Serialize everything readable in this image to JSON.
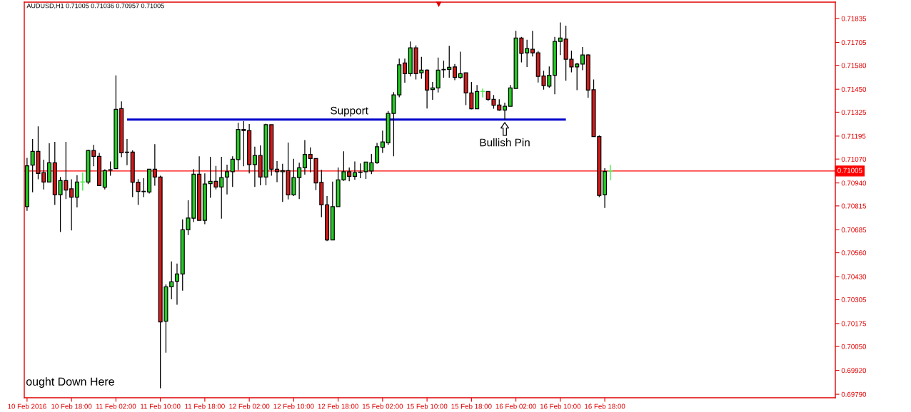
{
  "chart_data": {
    "type": "candlestick",
    "title": "AUDUSD,H1 0.71005 0.71036 0.70957 0.71005",
    "categories": [
      "10 Feb 2016",
      null,
      null,
      null,
      null,
      null,
      null,
      null,
      "10 Feb 18:00",
      null,
      null,
      null,
      null,
      null,
      null,
      null,
      "11 Feb 02:00",
      null,
      null,
      null,
      null,
      null,
      null,
      null,
      "11 Feb 10:00",
      null,
      null,
      null,
      null,
      null,
      null,
      null,
      "11 Feb 18:00",
      null,
      null,
      null,
      null,
      null,
      null,
      null,
      "12 Feb 02:00",
      null,
      null,
      null,
      null,
      null,
      null,
      null,
      "12 Feb 10:00",
      null,
      null,
      null,
      null,
      null,
      null,
      null,
      "12 Feb 18:00",
      null,
      null,
      null,
      null,
      null,
      null,
      null,
      "15 Feb 02:00",
      null,
      null,
      null,
      null,
      null,
      null,
      null,
      "15 Feb 10:00",
      null,
      null,
      null,
      null,
      null,
      null,
      null,
      "15 Feb 18:00",
      null,
      null,
      null,
      null,
      null,
      null,
      null,
      "16 Feb 02:00",
      null,
      null,
      null,
      null,
      null,
      null,
      null,
      "16 Feb 10:00",
      null,
      null,
      null,
      null,
      null,
      null,
      null,
      "16 Feb 18:00",
      null,
      null,
      null,
      null,
      null,
      null,
      null,
      null,
      null,
      null,
      null,
      null,
      null,
      null,
      null,
      null,
      null,
      null,
      null,
      null,
      null,
      null,
      null,
      null,
      null,
      null,
      null,
      null,
      null,
      null,
      null,
      null,
      null,
      null,
      null,
      null,
      null,
      null,
      null,
      null,
      null
    ],
    "ohlc": [
      [
        0.70811,
        0.71076,
        0.70788,
        0.71033
      ],
      [
        0.71037,
        0.71179,
        0.70889,
        0.71112
      ],
      [
        0.71112,
        0.71248,
        0.7096,
        0.70992
      ],
      [
        0.70996,
        0.71067,
        0.70905,
        0.70945
      ],
      [
        0.70945,
        0.71156,
        0.70945,
        0.7105
      ],
      [
        0.7105,
        0.71164,
        0.7082,
        0.70876
      ],
      [
        0.70876,
        0.70973,
        0.70673,
        0.70953
      ],
      [
        0.70953,
        0.71164,
        0.70852,
        0.70901
      ],
      [
        0.70908,
        0.7096,
        0.70682,
        0.70863
      ],
      [
        0.70863,
        0.70982,
        0.70807,
        0.70945
      ],
      [
        0.70945,
        0.70994,
        0.70901,
        0.70945
      ],
      [
        0.70945,
        0.71121,
        0.70934,
        0.71117
      ],
      [
        0.71117,
        0.71147,
        0.71031,
        0.71085
      ],
      [
        0.71085,
        0.71104,
        0.70926,
        0.70926
      ],
      [
        0.70917,
        0.71014,
        0.70905,
        0.71007
      ],
      [
        0.71012,
        0.71057,
        0.70979,
        0.7101
      ],
      [
        0.71018,
        0.71525,
        0.71015,
        0.71341
      ],
      [
        0.71345,
        0.71384,
        0.7108,
        0.71104
      ],
      [
        0.71108,
        0.71179,
        0.71037,
        0.71106
      ],
      [
        0.71108,
        0.71117,
        0.70863,
        0.70944
      ],
      [
        0.70944,
        0.7096,
        0.7082,
        0.70894
      ],
      [
        0.70895,
        0.70966,
        0.70863,
        0.70893
      ],
      [
        0.70891,
        0.71015,
        0.70882,
        0.71015
      ],
      [
        0.71015,
        0.71151,
        0.70925,
        0.70972
      ],
      [
        0.70972,
        0.70979,
        0.69822,
        0.70184
      ],
      [
        0.70188,
        0.70388,
        0.70016,
        0.70375
      ],
      [
        0.70375,
        0.70513,
        0.70307,
        0.70402
      ],
      [
        0.70405,
        0.70501,
        0.70277,
        0.70445
      ],
      [
        0.70445,
        0.70742,
        0.70354,
        0.70685
      ],
      [
        0.70685,
        0.70846,
        0.70656,
        0.70749
      ],
      [
        0.70748,
        0.71015,
        0.70727,
        0.70988
      ],
      [
        0.70988,
        0.71085,
        0.70736,
        0.70736
      ],
      [
        0.70736,
        0.70992,
        0.70716,
        0.70934
      ],
      [
        0.70936,
        0.71082,
        0.70859,
        0.70949
      ],
      [
        0.70949,
        0.71033,
        0.70905,
        0.70918
      ],
      [
        0.70918,
        0.71082,
        0.70746,
        0.70969
      ],
      [
        0.70972,
        0.7104,
        0.70878,
        0.71001
      ],
      [
        0.71001,
        0.71085,
        0.70918,
        0.71069
      ],
      [
        0.71067,
        0.71267,
        0.71009,
        0.71231
      ],
      [
        0.71231,
        0.71276,
        0.71031,
        0.71225
      ],
      [
        0.71225,
        0.71261,
        0.70992,
        0.7104
      ],
      [
        0.7104,
        0.71137,
        0.70918,
        0.71089
      ],
      [
        0.71089,
        0.71144,
        0.70927,
        0.70972
      ],
      [
        0.70972,
        0.71263,
        0.70927,
        0.71257
      ],
      [
        0.71257,
        0.71257,
        0.70979,
        0.71015
      ],
      [
        0.71015,
        0.71059,
        0.70944,
        0.71001
      ],
      [
        0.71001,
        0.71044,
        0.70837,
        0.71007
      ],
      [
        0.71007,
        0.7116,
        0.7085,
        0.70875
      ],
      [
        0.70875,
        0.71072,
        0.70869,
        0.70969
      ],
      [
        0.70969,
        0.7105,
        0.70852,
        0.71023
      ],
      [
        0.71023,
        0.71173,
        0.70985,
        0.71095
      ],
      [
        0.71095,
        0.71134,
        0.70998,
        0.71073
      ],
      [
        0.71073,
        0.71073,
        0.70901,
        0.7094
      ],
      [
        0.70943,
        0.71011,
        0.70753,
        0.70821
      ],
      [
        0.70821,
        0.70869,
        0.70623,
        0.7063
      ],
      [
        0.7063,
        0.70947,
        0.70627,
        0.70811
      ],
      [
        0.70811,
        0.71024,
        0.70811,
        0.70957
      ],
      [
        0.70957,
        0.71112,
        0.70951,
        0.71001
      ],
      [
        0.71001,
        0.71024,
        0.70949,
        0.70976
      ],
      [
        0.70976,
        0.71057,
        0.70957,
        0.70996
      ],
      [
        0.70999,
        0.71046,
        0.70966,
        0.70997
      ],
      [
        0.71001,
        0.71054,
        0.70962,
        0.71054
      ],
      [
        0.71005,
        0.71098,
        0.70988,
        0.7105
      ],
      [
        0.7105,
        0.71158,
        0.71044,
        0.71137
      ],
      [
        0.71134,
        0.71225,
        0.71104,
        0.71163
      ],
      [
        0.71158,
        0.71331,
        0.71147,
        0.71318
      ],
      [
        0.71318,
        0.71434,
        0.71085,
        0.71419
      ],
      [
        0.71419,
        0.71617,
        0.71406,
        0.71583
      ],
      [
        0.71593,
        0.71617,
        0.71486,
        0.71535
      ],
      [
        0.71535,
        0.7171,
        0.7152,
        0.71675
      ],
      [
        0.71675,
        0.71688,
        0.71503,
        0.71535
      ],
      [
        0.71539,
        0.71626,
        0.71507,
        0.71554
      ],
      [
        0.71554,
        0.71558,
        0.71345,
        0.71445
      ],
      [
        0.71448,
        0.7149,
        0.71393,
        0.71457
      ],
      [
        0.71457,
        0.71622,
        0.71432,
        0.71554
      ],
      [
        0.71558,
        0.71606,
        0.71513,
        0.71556
      ],
      [
        0.71558,
        0.71686,
        0.71513,
        0.7157
      ],
      [
        0.71571,
        0.71587,
        0.71499,
        0.71514
      ],
      [
        0.71514,
        0.71654,
        0.71507,
        0.71535
      ],
      [
        0.71539,
        0.71539,
        0.71363,
        0.7143
      ],
      [
        0.7143,
        0.7149,
        0.7134,
        0.71344
      ],
      [
        0.71344,
        0.71473,
        0.71344,
        0.71438
      ],
      [
        0.71438,
        0.71451,
        0.71408,
        0.71438
      ],
      [
        0.71438,
        0.71438,
        0.71386,
        0.71395
      ],
      [
        0.71395,
        0.71419,
        0.71344,
        0.71363
      ],
      [
        0.71364,
        0.71395,
        0.71332,
        0.71337
      ],
      [
        0.71337,
        0.71377,
        0.71285,
        0.71357
      ],
      [
        0.71357,
        0.71473,
        0.71357,
        0.71457
      ],
      [
        0.71454,
        0.71768,
        0.71454,
        0.71729
      ],
      [
        0.71729,
        0.71735,
        0.71596,
        0.71645
      ],
      [
        0.71648,
        0.71719,
        0.71571,
        0.71671
      ],
      [
        0.71667,
        0.71768,
        0.71628,
        0.71648
      ],
      [
        0.71648,
        0.71658,
        0.71487,
        0.7152
      ],
      [
        0.71522,
        0.71551,
        0.71448,
        0.7147
      ],
      [
        0.71467,
        0.71574,
        0.71458,
        0.71526
      ],
      [
        0.71526,
        0.71735,
        0.71423,
        0.7171
      ],
      [
        0.7171,
        0.71813,
        0.71636,
        0.71729
      ],
      [
        0.71723,
        0.71796,
        0.71496,
        0.71613
      ],
      [
        0.71613,
        0.7166,
        0.71542,
        0.71571
      ],
      [
        0.71571,
        0.71593,
        0.71445,
        0.71587
      ],
      [
        0.71587,
        0.7168,
        0.71554,
        0.71636
      ],
      [
        0.71636,
        0.71641,
        0.71403,
        0.71445
      ],
      [
        0.71447,
        0.71503,
        0.71192,
        0.71192
      ],
      [
        0.71192,
        0.71199,
        0.70863,
        0.70872
      ],
      [
        0.70876,
        0.7102,
        0.70804,
        0.71002
      ],
      [
        0.71005,
        0.71036,
        0.70957,
        0.71005
      ],
      null,
      null,
      null,
      null,
      null,
      null,
      null,
      null,
      null,
      null,
      null,
      null,
      null,
      null,
      null,
      null,
      null,
      null,
      null,
      null,
      null,
      null,
      null,
      null,
      null,
      null,
      null,
      null,
      null,
      null,
      null,
      null,
      null,
      null,
      null,
      null,
      null,
      null,
      null,
      null
    ],
    "colors": [
      "#22cc22",
      "#22cc22",
      "#d41a1a",
      "#d41a1a",
      "#22cc22",
      "#d41a1a",
      "#22cc22",
      "#d41a1a",
      "#d41a1a",
      "#22cc22",
      "#55ee55",
      "#22cc22",
      "#d41a1a",
      "#d41a1a",
      "#22cc22",
      "#d41a1a",
      "#22cc22",
      "#d41a1a",
      "#d41a1a",
      "#d41a1a",
      "#d41a1a",
      "#d41a1a",
      "#22cc22",
      "#d41a1a",
      "#d41a1a",
      "#22cc22",
      "#22cc22",
      "#22cc22",
      "#22cc22",
      "#22cc22",
      "#22cc22",
      "#d41a1a",
      "#22cc22",
      "#22cc22",
      "#d41a1a",
      "#22cc22",
      "#22cc22",
      "#22cc22",
      "#22cc22",
      "#d41a1a",
      "#d41a1a",
      "#22cc22",
      "#d41a1a",
      "#22cc22",
      "#d41a1a",
      "#d41a1a",
      "#22cc22",
      "#d41a1a",
      "#22cc22",
      "#22cc22",
      "#22cc22",
      "#d41a1a",
      "#d41a1a",
      "#d41a1a",
      "#d41a1a",
      "#22cc22",
      "#22cc22",
      "#22cc22",
      "#d41a1a",
      "#22cc22",
      "#d41a1a",
      "#22cc22",
      "#22cc22",
      "#22cc22",
      "#22cc22",
      "#22cc22",
      "#22cc22",
      "#22cc22",
      "#d41a1a",
      "#22cc22",
      "#d41a1a",
      "#22cc22",
      "#d41a1a",
      "#22cc22",
      "#22cc22",
      "#d41a1a",
      "#22cc22",
      "#d41a1a",
      "#22cc22",
      "#d41a1a",
      "#d41a1a",
      "#22cc22",
      "#55ee55",
      "#d41a1a",
      "#d41a1a",
      "#d41a1a",
      "#22cc22",
      "#22cc22",
      "#22cc22",
      "#d41a1a",
      "#22cc22",
      "#d41a1a",
      "#d41a1a",
      "#d41a1a",
      "#22cc22",
      "#22cc22",
      "#22cc22",
      "#d41a1a",
      "#d41a1a",
      "#22cc22",
      "#22cc22",
      "#d41a1a",
      "#d41a1a",
      "#d41a1a",
      "#22cc22",
      "#55ee55",
      null,
      null,
      null,
      null,
      null,
      null,
      null,
      null,
      null,
      null,
      null,
      null,
      null,
      null,
      null,
      null,
      null,
      null,
      null,
      null,
      null,
      null,
      null,
      null,
      null,
      null,
      null,
      null,
      null,
      null,
      null,
      null,
      null,
      null,
      null,
      null,
      null,
      null,
      null,
      null
    ],
    "series": [
      {
        "type": "line",
        "name": "Support",
        "color": "#0000cc",
        "values": [
          null,
          null,
          null,
          null,
          null,
          null,
          null,
          null,
          null,
          null,
          null,
          null,
          null,
          null,
          null,
          null,
          null,
          null,
          0.71285,
          0.71285,
          0.71285,
          0.71285,
          0.71285,
          0.71285,
          0.71285,
          0.71285,
          0.71285,
          0.71285,
          0.71285,
          0.71285,
          0.71285,
          0.71285,
          0.71285,
          0.71285,
          0.71285,
          0.71285,
          0.71285,
          0.71285,
          0.71285,
          0.71285,
          0.71285,
          0.71285,
          0.71285,
          0.71285,
          0.71285,
          0.71285,
          0.71285,
          0.71285,
          0.71285,
          0.71285,
          0.71285,
          0.71285,
          0.71285,
          0.71285,
          0.71285,
          0.71285,
          0.71285,
          0.71285,
          0.71285,
          0.71285,
          0.71285,
          0.71285,
          0.71285,
          0.71285,
          0.71285,
          0.71285,
          0.71285,
          0.71285,
          0.71285,
          0.71285,
          0.71285,
          0.71285,
          0.71285,
          0.71285,
          0.71285,
          0.71285,
          0.71285,
          0.71285,
          0.71285,
          0.71285,
          0.71285,
          0.71285,
          0.71285,
          0.71285,
          0.71285,
          0.71285,
          0.71285,
          0.71285,
          0.71285,
          0.71285,
          0.71285,
          0.71285,
          0.71285,
          0.71285,
          0.71285,
          0.71285,
          0.71285,
          0.71285,
          null,
          null,
          null,
          null,
          null,
          null,
          null,
          null,
          null,
          null,
          null,
          null,
          null,
          null,
          null,
          null,
          null,
          null,
          null,
          null,
          null,
          null,
          null,
          null,
          null,
          null,
          null,
          null,
          null,
          null,
          null,
          null,
          null,
          null,
          null,
          null,
          null,
          null,
          null,
          null,
          null,
          null,
          null,
          null,
          null,
          null,
          null,
          null
        ]
      }
    ],
    "ref_lines": [
      {
        "axis": "y",
        "value": 0.71005,
        "label": "0.71005",
        "color": "#ff0000"
      }
    ],
    "annotations": [
      {
        "text": "Bullish Pin",
        "y": 0.71285
      },
      "ought Down Here"
    ],
    "ylim": [
      0.69771,
      0.71924
    ],
    "yticks": [
      0.71835,
      0.71705,
      {
        "value": 0.7158,
        "label": "0.71580"
      },
      {
        "value": 0.7145,
        "label": "0.71450"
      },
      0.71325,
      0.71195,
      {
        "value": 0.7107,
        "label": "0.71070"
      },
      {
        "value": 0.7094,
        "label": "0.70940"
      },
      0.70815,
      0.70685,
      {
        "value": 0.7056,
        "label": "0.70560"
      },
      {
        "value": 0.7043,
        "label": "0.70430"
      },
      0.70305,
      0.70175,
      {
        "value": 0.7005,
        "label": "0.70050"
      },
      {
        "value": 0.6992,
        "label": "0.69920"
      },
      {
        "value": 0.6979,
        "label": "0.69790"
      }
    ]
  }
}
